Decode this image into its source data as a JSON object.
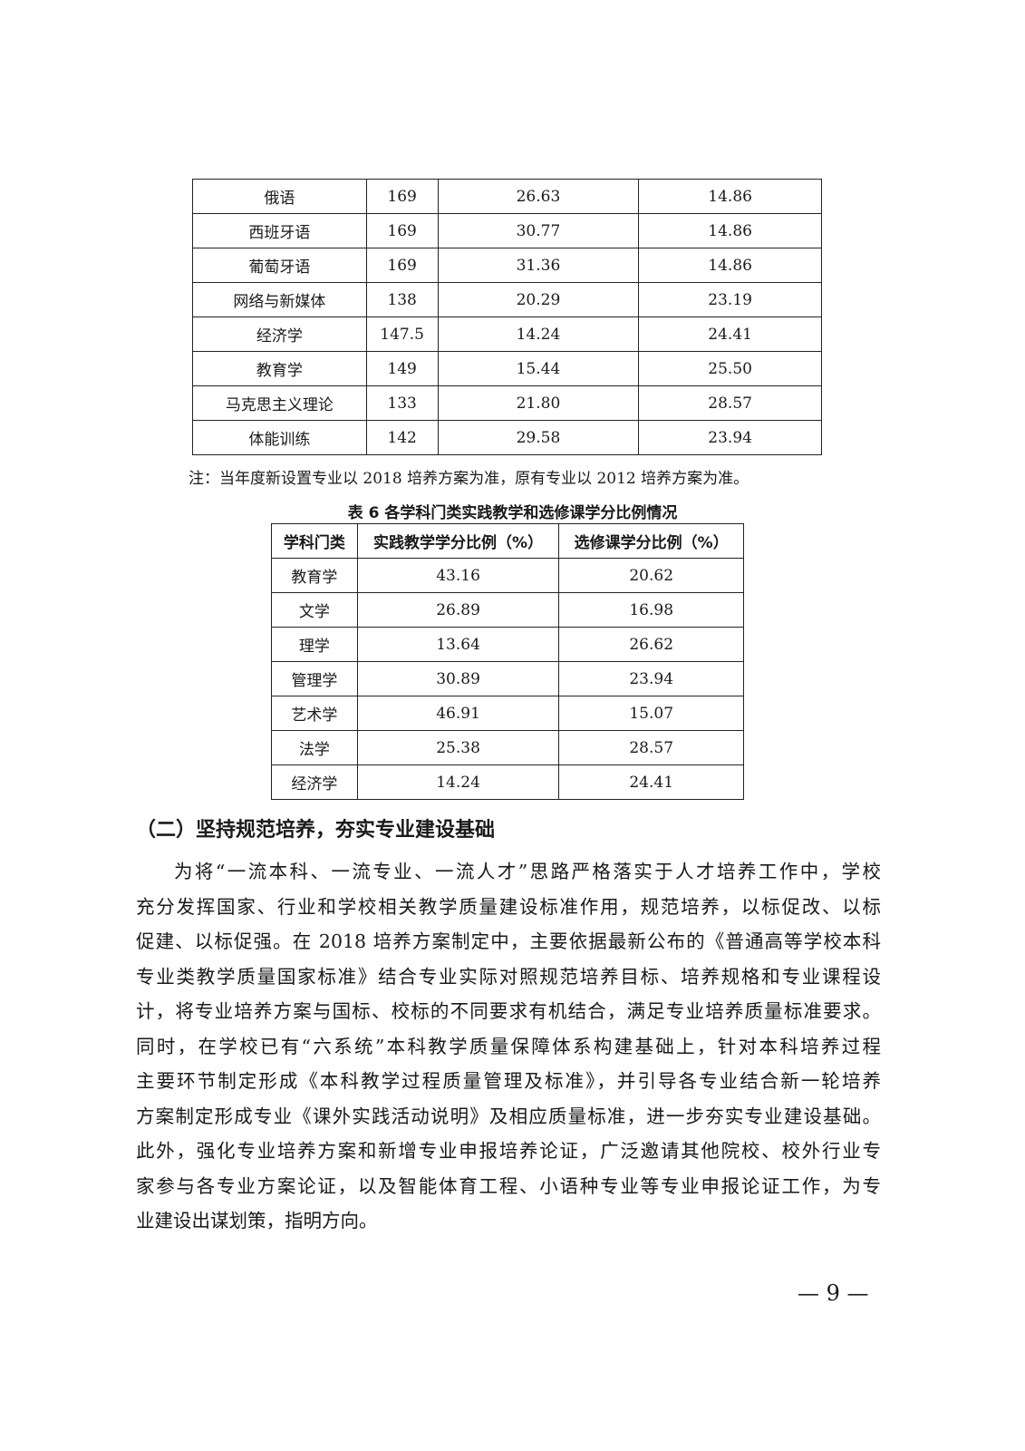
{
  "table5_rows": [
    [
      "俄语",
      "169",
      "26.63",
      "14.86"
    ],
    [
      "西班牙语",
      "169",
      "30.77",
      "14.86"
    ],
    [
      "葡萄牙语",
      "169",
      "31.36",
      "14.86"
    ],
    [
      "网络与新媒体",
      "138",
      "20.29",
      "23.19"
    ],
    [
      "经济学",
      "147.5",
      "14.24",
      "24.41"
    ],
    [
      "教育学",
      "149",
      "15.44",
      "25.50"
    ],
    [
      "马克思主义理论",
      "133",
      "21.80",
      "28.57"
    ],
    [
      "体能训练",
      "142",
      "29.58",
      "23.94"
    ]
  ],
  "note": "注：当年度新设置专业以 2018 培养方案为准，原有专业以 2012 培养方案为准。",
  "table6": {
    "caption": "表 6  各学科门类实践教学和选修课学分比例情况",
    "headers": [
      "学科门类",
      "实践教学学分比例（%）",
      "选修课学分比例（%）"
    ],
    "rows": [
      [
        "教育学",
        "43.16",
        "20.62"
      ],
      [
        "文学",
        "26.89",
        "16.98"
      ],
      [
        "理学",
        "13.64",
        "26.62"
      ],
      [
        "管理学",
        "30.89",
        "23.94"
      ],
      [
        "艺术学",
        "46.91",
        "15.07"
      ],
      [
        "法学",
        "25.38",
        "28.57"
      ],
      [
        "经济学",
        "14.24",
        "24.41"
      ]
    ]
  },
  "section_heading": "（二）坚持规范培养，夯实专业建设基础",
  "paragraph_lines": [
    "为将“一流本科、一流专业、一流人才”思路严格落实于人才培养工作中，学校",
    "充分发挥国家、行业和学校相关教学质量建设标准作用，规范培养，以标促改、以标",
    "促建、以标促强。在 2018 培养方案制定中，主要依据最新公布的《普通高等学校本科",
    "专业类教学质量国家标准》结合专业实际对照规范培养目标、培养规格和专业课程设",
    "计，将专业培养方案与国标、校标的不同要求有机结合，满足专业培养质量标准要求。",
    "同时，在学校已有“六系统”本科教学质量保障体系构建基础上，针对本科培养过程",
    "主要环节制定形成《本科教学过程质量管理及标准》，并引导各专业结合新一轮培养",
    "方案制定形成专业《课外实践活动说明》及相应质量标准，进一步夯实专业建设基础。",
    "此外，强化专业培养方案和新增专业申报培养论证，广泛邀请其他院校、校外行业专",
    "家参与各专业方案论证，以及智能体育工程、小语种专业等专业申报论证工作，为专",
    "业建设出谋划策，指明方向。"
  ],
  "page_number": "— 9 —"
}
